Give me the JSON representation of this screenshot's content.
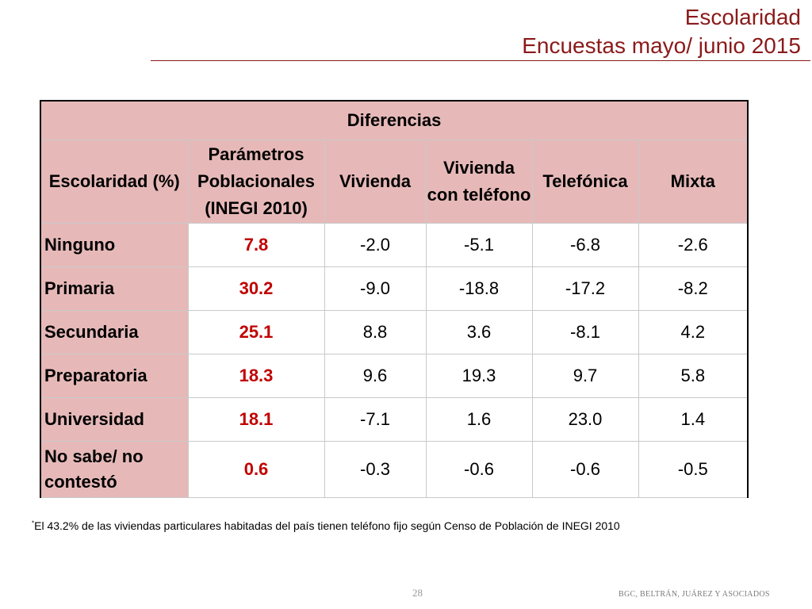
{
  "title": {
    "line1": "Escolaridad",
    "line2": "Encuestas mayo/ junio 2015"
  },
  "table": {
    "group_header": "Diferencias",
    "columns": [
      "Escolaridad (%)",
      "Parámetros Poblacionales (INEGI 2010)",
      "Vivienda",
      "Vivienda con teléfono",
      "Telefónica",
      "Mixta"
    ],
    "rows": [
      {
        "label": "Ninguno",
        "values": [
          "7.8",
          "-2.0",
          "-5.1",
          "-6.8",
          "-2.6"
        ]
      },
      {
        "label": "Primaria",
        "values": [
          "30.2",
          "-9.0",
          "-18.8",
          "-17.2",
          "-8.2"
        ]
      },
      {
        "label": "Secundaria",
        "values": [
          "25.1",
          "8.8",
          "3.6",
          "-8.1",
          "4.2"
        ]
      },
      {
        "label": "Preparatoria",
        "values": [
          "18.3",
          "9.6",
          "19.3",
          "9.7",
          "5.8"
        ]
      },
      {
        "label": "Universidad",
        "values": [
          "18.1",
          "-7.1",
          "1.6",
          "23.0",
          "1.4"
        ]
      },
      {
        "label": "No sabe/ no contestó",
        "values": [
          "0.6",
          "-0.3",
          "-0.6",
          "-0.6",
          "-0.5"
        ]
      }
    ]
  },
  "footnote": {
    "marker": "*",
    "text": "El 43.2% de las viviendas particulares habitadas del país tienen teléfono fijo según Censo de Población de INEGI 2010"
  },
  "page_number": "28",
  "firm_name": "BGC, BELTRÁN, JUÁREZ Y ASOCIADOS",
  "colors": {
    "accent": "#8b1a1a",
    "header_fill": "#e6b9b8",
    "highlight_value": "#c00000"
  }
}
